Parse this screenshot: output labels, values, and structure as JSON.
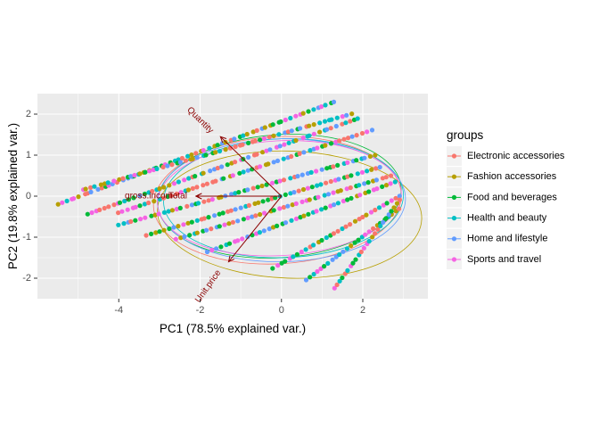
{
  "chart_data": {
    "type": "scatter",
    "title": "",
    "xlabel": "PC1 (78.5% explained var.)",
    "ylabel": "PC2 (19.8% explained var.)",
    "xlim": [
      -6.0,
      3.6
    ],
    "ylim": [
      -2.5,
      2.5
    ],
    "x_ticks": [
      -4,
      -2,
      0,
      2
    ],
    "y_ticks": [
      -2,
      -1,
      0,
      1,
      2
    ],
    "grid": true,
    "legend_position": "right",
    "legend_title": "groups",
    "series": [
      {
        "name": "Electronic accessories",
        "color": "#F8766D"
      },
      {
        "name": "Fashion accessories",
        "color": "#B79F00"
      },
      {
        "name": "Food and beverages",
        "color": "#00BA38"
      },
      {
        "name": "Health and beauty",
        "color": "#00BFC4"
      },
      {
        "name": "Home and lifestyle",
        "color": "#619CFF"
      },
      {
        "name": "Sports and travel",
        "color": "#F564E3"
      }
    ],
    "point_bands": [
      {
        "x_start": -5.5,
        "y_start": -0.2,
        "x_end": 1.3,
        "y_end": 2.3
      },
      {
        "x_start": -4.9,
        "y_start": 0.15,
        "x_end": 1.7,
        "y_end": 2.0
      },
      {
        "x_start": -4.8,
        "y_start": -0.45,
        "x_end": 1.9,
        "y_end": 1.9
      },
      {
        "x_start": -4.0,
        "y_start": -0.4,
        "x_end": 2.2,
        "y_end": 1.6
      },
      {
        "x_start": -4.0,
        "y_start": -0.7,
        "x_end": 2.3,
        "y_end": 1.0
      },
      {
        "x_start": -3.3,
        "y_start": -0.95,
        "x_end": 2.4,
        "y_end": 0.7
      },
      {
        "x_start": -2.6,
        "y_start": -1.05,
        "x_end": 2.7,
        "y_end": 0.5
      },
      {
        "x_start": -1.8,
        "y_start": -1.35,
        "x_end": 2.8,
        "y_end": 0.35
      },
      {
        "x_start": -0.2,
        "y_start": -1.75,
        "x_end": 2.9,
        "y_end": 0.0
      },
      {
        "x_start": 0.6,
        "y_start": -2.05,
        "x_end": 2.9,
        "y_end": -0.3
      },
      {
        "x_start": 1.3,
        "y_start": -2.25,
        "x_end": 2.9,
        "y_end": -0.1
      }
    ],
    "ellipses": [
      {
        "group": "Electronic accessories",
        "cx": -0.1,
        "cy": -0.1,
        "rx": 3.05,
        "ry": 1.55,
        "angle": 3
      },
      {
        "group": "Fashion accessories",
        "cx": 0.2,
        "cy": -0.45,
        "rx": 3.25,
        "ry": 1.55,
        "angle": -2
      },
      {
        "group": "Food and beverages",
        "cx": -0.05,
        "cy": 0.0,
        "rx": 3.0,
        "ry": 1.5,
        "angle": 4
      },
      {
        "group": "Health and beauty",
        "cx": 0.05,
        "cy": -0.05,
        "rx": 2.95,
        "ry": 1.45,
        "angle": 2
      },
      {
        "group": "Home and lifestyle",
        "cx": 0.0,
        "cy": -0.1,
        "rx": 3.05,
        "ry": 1.5,
        "angle": 1
      },
      {
        "group": "Sports and travel",
        "cx": -0.05,
        "cy": -0.05,
        "rx": 3.0,
        "ry": 1.4,
        "angle": 3
      }
    ],
    "loading_vectors": [
      {
        "label": "Quantity",
        "x": -1.5,
        "y": 1.45,
        "label_x": -2.0,
        "label_y": 1.85,
        "label_angle": 45
      },
      {
        "label": "gross.income",
        "x": -2.1,
        "y": 0.0,
        "label_x": -3.2,
        "label_y": 0.0,
        "label_angle": 0
      },
      {
        "label": "Total",
        "x": -2.1,
        "y": 0.0,
        "label_x": -2.55,
        "label_y": 0.0,
        "label_angle": 0
      },
      {
        "label": "Unit.price",
        "x": -1.3,
        "y": -1.6,
        "label_x": -1.8,
        "label_y": -2.2,
        "label_angle": -55
      }
    ],
    "vector_color": "#8B0000"
  }
}
